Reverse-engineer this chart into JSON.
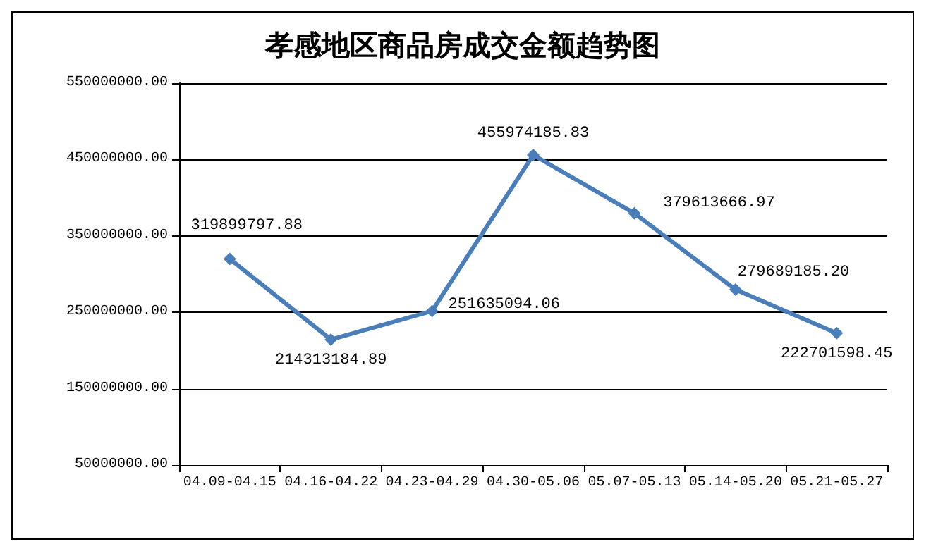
{
  "chart_data": {
    "type": "line",
    "title": "孝感地区商品房成交金额趋势图",
    "categories": [
      "04.09-04.15",
      "04.16-04.22",
      "04.23-04.29",
      "04.30-05.06",
      "05.07-05.13",
      "05.14-05.20",
      "05.21-05.27"
    ],
    "series": [
      {
        "color": "#4a7ebb",
        "values": [
          319899797.88,
          214313184.89,
          251635094.06,
          455974185.83,
          379613666.97,
          279689185.2,
          222701598.45
        ],
        "value_labels": [
          "319899797.88",
          "214313184.89",
          "251635094.06",
          "455974185.83",
          "379613666.97",
          "279689185.20",
          "222701598.45"
        ]
      }
    ],
    "ylim": [
      50000000,
      550000000
    ],
    "yticks": [
      {
        "value": 50000000,
        "label": "50000000.00"
      },
      {
        "value": 150000000,
        "label": "150000000.00"
      },
      {
        "value": 250000000,
        "label": "250000000.00"
      },
      {
        "value": 350000000,
        "label": "350000000.00"
      },
      {
        "value": 450000000,
        "label": "450000000.00"
      },
      {
        "value": 550000000,
        "label": "550000000.00"
      }
    ],
    "grid": "y",
    "marker": "diamond",
    "line_style": "solid"
  }
}
